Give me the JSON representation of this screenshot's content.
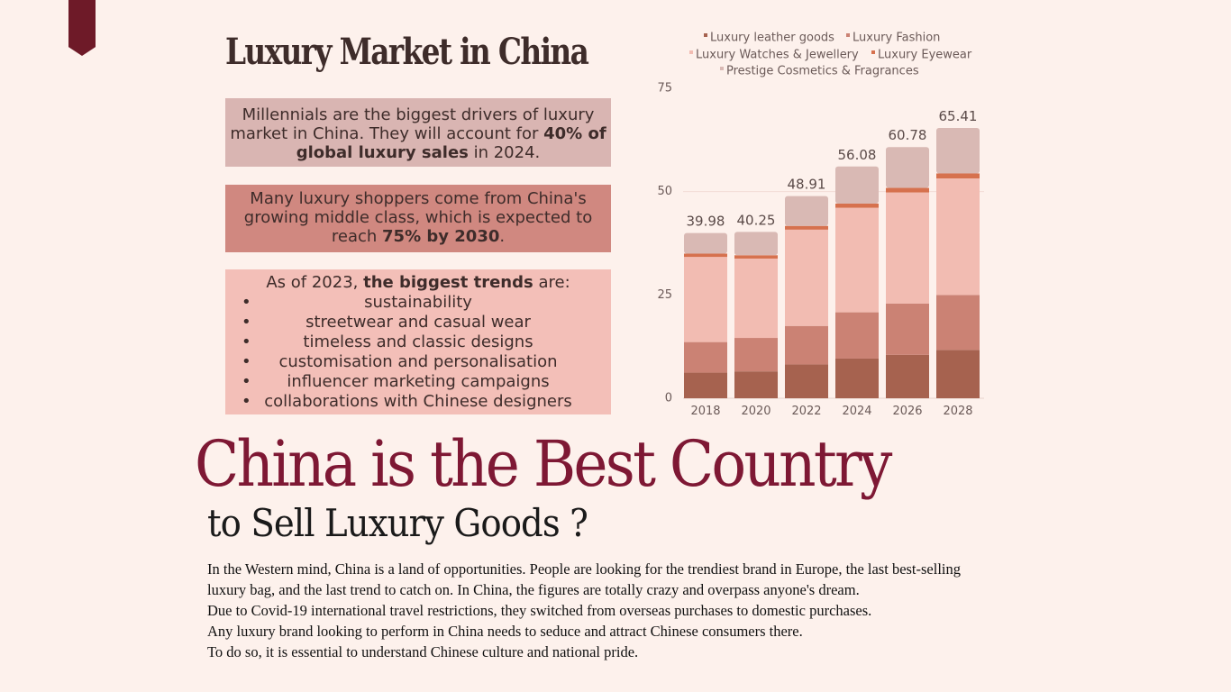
{
  "infographic": {
    "title": "Luxury Market in China",
    "box1": {
      "pre": "Millennials are the biggest drivers of luxury market in China. They will account for ",
      "bold": "40% of global luxury sales",
      "post": " in 2024."
    },
    "box2": {
      "pre": "Many luxury shoppers come from China's growing middle class, which is expected to reach ",
      "bold": "75% by 2030",
      "post": "."
    },
    "box3": {
      "pre": "As of 2023, ",
      "bold": "the biggest trends",
      "post": " are:",
      "items": [
        "sustainability",
        "streetwear and casual wear",
        "timeless and classic designs",
        "customisation and personalisation",
        "influencer marketing campaigns",
        "collaborations with Chinese designers"
      ]
    }
  },
  "chart_data": {
    "type": "bar",
    "stacked": true,
    "categories": [
      "2018",
      "2020",
      "2022",
      "2024",
      "2026",
      "2028"
    ],
    "totals": [
      "39.98",
      "40.25",
      "48.91",
      "56.08",
      "60.78",
      "65.41"
    ],
    "series": [
      {
        "name": "Luxury leather goods",
        "color": "#a6624f",
        "values": [
          6.2,
          6.5,
          8.2,
          9.6,
          10.5,
          11.7
        ]
      },
      {
        "name": "Luxury Fashion",
        "color": "#cb8274",
        "values": [
          7.4,
          8.1,
          9.3,
          11.2,
          12.4,
          13.3
        ]
      },
      {
        "name": "Luxury Watches & Jewellery",
        "color": "#f2bcb2",
        "values": [
          20.6,
          19.2,
          23.3,
          25.3,
          26.9,
          28.2
        ]
      },
      {
        "name": "Luxury Eyewear",
        "color": "#d6714e",
        "values": [
          0.8,
          0.8,
          0.9,
          1.0,
          1.1,
          1.2
        ]
      },
      {
        "name": "Prestige Cosmetics & Fragrances",
        "color": "#d9b9b4",
        "values": [
          4.98,
          5.65,
          7.21,
          8.98,
          9.88,
          11.01
        ]
      }
    ],
    "yticks": [
      "0",
      "25",
      "50",
      "75"
    ],
    "ylim": [
      0,
      75
    ],
    "legend_position": "top",
    "gridlines": false
  },
  "headline": "China is the Best Country",
  "subheadline": "to Sell Luxury Goods ?",
  "paragraph": [
    "In the Western mind, China is a land of opportunities. People are looking for the trendiest brand in Europe, the last best-selling luxury bag, and the last trend to catch on. In China, the figures are totally crazy and overpass anyone's dream.",
    "Due to Covid-19 international travel restrictions, they switched from overseas purchases to domestic purchases.",
    "Any luxury brand looking to perform in China needs to seduce and attract Chinese consumers there.",
    "To do so, it is essential to understand Chinese culture and national pride."
  ]
}
